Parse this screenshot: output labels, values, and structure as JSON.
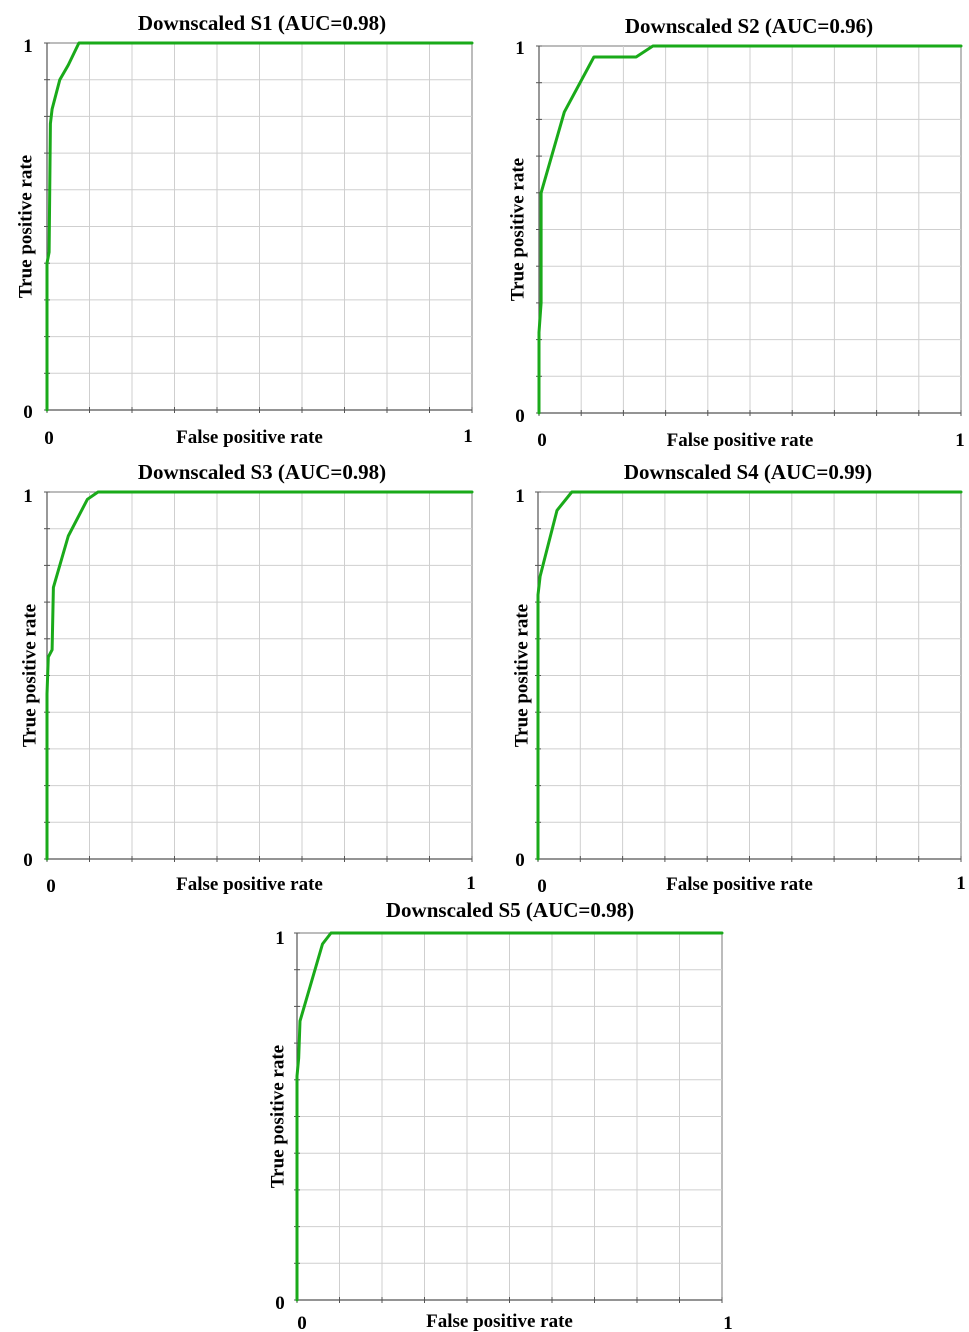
{
  "chart_data": [
    {
      "type": "line",
      "title": "Downscaled S1  (AUC=0.98)",
      "xlabel": "False positive rate",
      "ylabel": "True positive rate",
      "xlim": [
        0,
        1
      ],
      "ylim": [
        0,
        1
      ],
      "x_ticks": [
        "0",
        "1"
      ],
      "y_ticks": [
        "0",
        "1"
      ],
      "grid": true,
      "line_color": "#1aaa1a",
      "series": [
        {
          "x": [
            0,
            0,
            0.005,
            0.008,
            0.012,
            0.03,
            0.05,
            0.075,
            1.0
          ],
          "y": [
            0,
            0.4,
            0.43,
            0.78,
            0.82,
            0.9,
            0.94,
            1.0,
            1.0
          ]
        }
      ]
    },
    {
      "type": "line",
      "title": "Downscaled S2  (AUC=0.96)",
      "xlabel": "False positive rate",
      "ylabel": "True positive rate",
      "xlim": [
        0,
        1
      ],
      "ylim": [
        0,
        1
      ],
      "x_ticks": [
        "0",
        "1"
      ],
      "y_ticks": [
        "0",
        "1"
      ],
      "grid": true,
      "line_color": "#1aaa1a",
      "series": [
        {
          "x": [
            0,
            0,
            0.005,
            0.005,
            0.06,
            0.13,
            0.23,
            0.27,
            1.0
          ],
          "y": [
            0,
            0.22,
            0.3,
            0.6,
            0.82,
            0.97,
            0.97,
            1.0,
            1.0
          ]
        }
      ]
    },
    {
      "type": "line",
      "title": "Downscaled S3  (AUC=0.98)",
      "xlabel": "False positive rate",
      "ylabel": "True positive rate",
      "xlim": [
        0,
        1
      ],
      "ylim": [
        0,
        1
      ],
      "x_ticks": [
        "0",
        "1"
      ],
      "y_ticks": [
        "0",
        "1"
      ],
      "grid": true,
      "line_color": "#1aaa1a",
      "series": [
        {
          "x": [
            0,
            0,
            0.003,
            0.012,
            0.015,
            0.05,
            0.095,
            0.12,
            1.0
          ],
          "y": [
            0,
            0.45,
            0.55,
            0.57,
            0.74,
            0.88,
            0.98,
            1.0,
            1.0
          ]
        }
      ]
    },
    {
      "type": "line",
      "title": "Downscaled S4  (AUC=0.99)",
      "xlabel": "False positive rate",
      "ylabel": "True positive rate",
      "xlim": [
        0,
        1
      ],
      "ylim": [
        0,
        1
      ],
      "x_ticks": [
        "0",
        "1"
      ],
      "y_ticks": [
        "0",
        "1"
      ],
      "grid": true,
      "line_color": "#1aaa1a",
      "series": [
        {
          "x": [
            0,
            0,
            0.005,
            0.045,
            0.08,
            1.0
          ],
          "y": [
            0,
            0.72,
            0.77,
            0.95,
            1.0,
            1.0
          ]
        }
      ]
    },
    {
      "type": "line",
      "title": "Downscaled S5  (AUC=0.98)",
      "xlabel": "False positive rate",
      "ylabel": "True positive rate",
      "xlim": [
        0,
        1
      ],
      "ylim": [
        0,
        1
      ],
      "x_ticks": [
        "0",
        "1"
      ],
      "y_ticks": [
        "0",
        "1"
      ],
      "grid": true,
      "line_color": "#1aaa1a",
      "series": [
        {
          "x": [
            0,
            0,
            0.004,
            0.007,
            0.06,
            0.08,
            1.0
          ],
          "y": [
            0,
            0.61,
            0.66,
            0.76,
            0.97,
            1.0,
            1.0
          ]
        }
      ]
    }
  ]
}
